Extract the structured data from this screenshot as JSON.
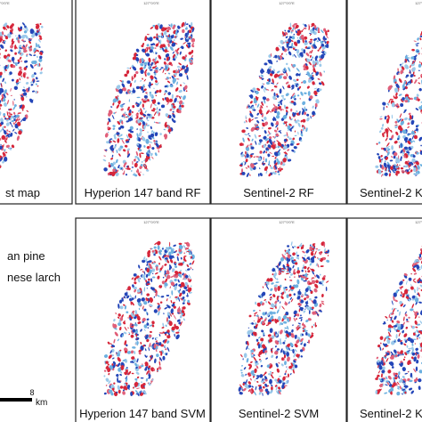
{
  "panels_top": [
    "st map",
    "Hyperion 147 band RF",
    "Sentinel-2 RF",
    "Sentinel-2 K"
  ],
  "panels_bottom": [
    "Hyperion 147 band SVM",
    "Sentinel-2 SVM",
    "Sentinel-2 K"
  ],
  "legend": [
    "an pine",
    "nese larch"
  ],
  "scale_bar": {
    "max": "8",
    "unit": "km"
  },
  "coordinate_label": "127°0'0\"E"
}
